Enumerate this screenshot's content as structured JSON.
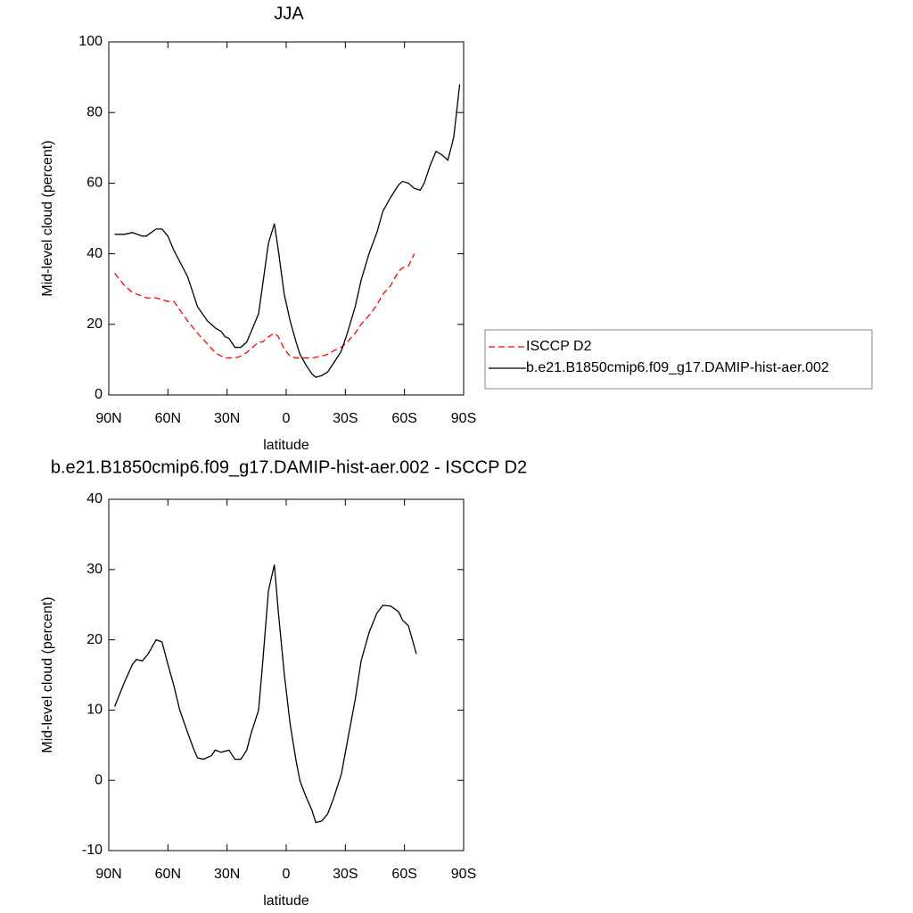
{
  "chart_data": [
    {
      "type": "line",
      "title": "JJA",
      "x_label": "latitude",
      "y_label": "Mid-level cloud (percent)",
      "x": [
        87,
        82,
        78,
        73,
        71,
        66,
        63,
        60,
        57,
        50,
        45,
        40,
        36,
        33,
        31,
        29,
        26,
        23,
        20,
        17,
        14,
        12,
        9,
        6,
        4,
        1,
        -2,
        -5,
        -7,
        -10,
        -13,
        -15,
        -18,
        -21,
        -24,
        -28,
        -31,
        -35,
        -38,
        -42,
        -46,
        -49,
        -53,
        -57,
        -59,
        -62,
        -65,
        -68,
        -70,
        -73,
        -76,
        -79,
        -82,
        -85,
        -88
      ],
      "series": [
        {
          "name": "ISCCP D2",
          "color": "#ff0000",
          "line_style": "dashed",
          "values": [
            34.5,
            31,
            29,
            28,
            27.5,
            27.5,
            27,
            26.5,
            26.5,
            21,
            17.5,
            14.5,
            12,
            11,
            10.5,
            10.5,
            10.5,
            11,
            12,
            13.5,
            15,
            15,
            16.5,
            17.5,
            16.5,
            13,
            11,
            10.5,
            10.5,
            10.5,
            10.5,
            10.7,
            11,
            11.5,
            12.5,
            13.5,
            15,
            17.5,
            20,
            22.5,
            25.5,
            28.5,
            31,
            35,
            36,
            36.5,
            40,
            null,
            null,
            null,
            null,
            null,
            null,
            null,
            null
          ]
        },
        {
          "name": "b.e21.B1850cmip6.f09_g17.DAMIP-hist-aer.002",
          "color": "#000000",
          "line_style": "solid",
          "values": [
            45.5,
            45.5,
            46,
            45,
            45,
            47,
            47,
            45,
            41,
            33.5,
            25,
            21,
            19,
            18,
            16.5,
            16,
            13.5,
            13.5,
            15,
            19,
            23,
            31,
            43,
            48.5,
            41,
            28.5,
            21,
            15,
            11.5,
            8.5,
            6,
            5,
            5.5,
            6.5,
            9,
            12.5,
            17.5,
            25,
            32.5,
            40,
            46,
            52,
            56,
            59.5,
            60.5,
            60,
            58.5,
            58,
            60,
            65,
            69,
            68,
            66.5,
            73,
            88
          ]
        }
      ],
      "xlim": [
        90,
        -90
      ],
      "xticks": [
        {
          "value": 90,
          "label": "90N"
        },
        {
          "value": 60,
          "label": "60N"
        },
        {
          "value": 30,
          "label": "30N"
        },
        0,
        {
          "value": -30,
          "label": "30S"
        },
        {
          "value": -60,
          "label": "60S"
        },
        {
          "value": -90,
          "label": "90S"
        }
      ],
      "ylim": [
        0,
        100
      ],
      "yticks": [
        0,
        20,
        40,
        60,
        80,
        100
      ],
      "legend": "right"
    },
    {
      "type": "line",
      "title": "b.e21.B1850cmip6.f09_g17.DAMIP-hist-aer.002 - ISCCP D2",
      "x_label": "latitude",
      "y_label": "Mid-level cloud (percent)",
      "x": [
        87,
        82,
        78,
        76,
        73,
        70,
        66,
        63,
        60,
        57,
        54,
        50,
        47,
        45,
        42,
        38,
        36,
        33,
        29,
        26,
        23,
        20,
        18,
        14,
        12,
        9,
        6,
        4,
        1,
        -2,
        -5,
        -7,
        -10,
        -13,
        -15,
        -18,
        -21,
        -24,
        -28,
        -31,
        -35,
        -38,
        -42,
        -46,
        -49,
        -53,
        -57,
        -59,
        -62,
        -66
      ],
      "values": [
        10.5,
        14,
        16.5,
        17.2,
        17,
        18,
        20,
        19.7,
        16.5,
        13.5,
        10,
        6.8,
        4.5,
        3.2,
        3,
        3.5,
        4.3,
        4,
        4.3,
        3,
        3,
        4.3,
        6.5,
        10,
        16.5,
        27,
        30.7,
        24,
        15.2,
        8,
        2.8,
        -0.1,
        -2.3,
        -4.2,
        -6,
        -5.8,
        -4.8,
        -2.6,
        0.9,
        5.5,
        11.5,
        17,
        21,
        23.8,
        24.9,
        24.8,
        24,
        22.8,
        22,
        18
      ],
      "color": "#000000",
      "xlim": [
        90,
        -90
      ],
      "xticks": [
        {
          "value": 90,
          "label": "90N"
        },
        {
          "value": 60,
          "label": "60N"
        },
        {
          "value": 30,
          "label": "30N"
        },
        0,
        {
          "value": -30,
          "label": "30S"
        },
        {
          "value": -60,
          "label": "60S"
        },
        {
          "value": -90,
          "label": "90S"
        }
      ],
      "ylim": [
        -10,
        40
      ],
      "yticks": [
        -10,
        0,
        10,
        20,
        30,
        40
      ]
    }
  ]
}
